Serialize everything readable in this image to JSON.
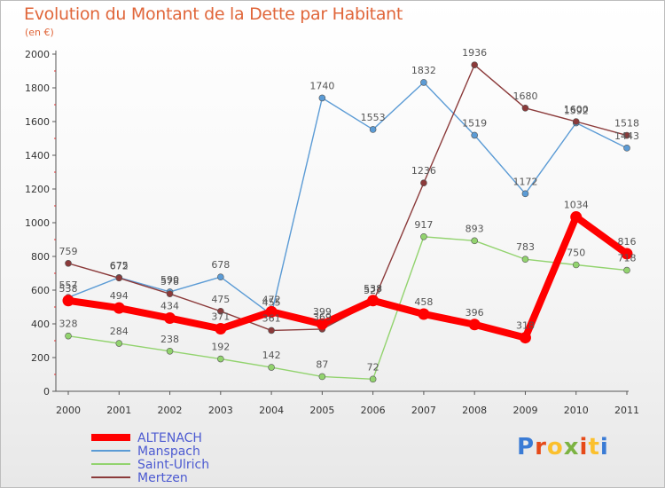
{
  "title": "Evolution du Montant de la Dette par Habitant",
  "subtitle": "(en €)",
  "logo": {
    "text": "Proxiti",
    "colors": [
      "#3a7bd5",
      "#e64a19",
      "#fbc02d",
      "#7cb342",
      "#e64a19",
      "#fbc02d",
      "#3a7bd5"
    ]
  },
  "chart_data": {
    "type": "line",
    "title": "Evolution du Montant de la Dette par Habitant",
    "subtitle": "(en €)",
    "xlabel": "",
    "ylabel": "",
    "x": [
      "2000",
      "2001",
      "2002",
      "2003",
      "2004",
      "2005",
      "2006",
      "2007",
      "2008",
      "2009",
      "2010",
      "2011"
    ],
    "ylim": [
      0,
      2000
    ],
    "yticks": [
      "0",
      "200",
      "400",
      "600",
      "800",
      "1000",
      "1200",
      "1400",
      "1600",
      "1800",
      "2000"
    ],
    "grid": false,
    "legend_position": "bottom-left",
    "series": [
      {
        "name": "ALTENACH",
        "color": "#ff0000",
        "emphasis": true,
        "values": [
          538,
          494,
          434,
          371,
          472,
          399,
          538,
          458,
          396,
          318,
          1034,
          816
        ],
        "labels": [
          "538",
          "494",
          "434",
          "371",
          "472",
          "399",
          "538",
          "458",
          "396",
          "318",
          "1034",
          "816"
        ]
      },
      {
        "name": "Manspach",
        "color": "#5b9bd5",
        "values": [
          557,
          675,
          590,
          678,
          455,
          1740,
          1553,
          1832,
          1519,
          1172,
          1592,
          1443
        ],
        "labels": [
          "557",
          "675",
          "590",
          "678",
          "455",
          "1740",
          "1553",
          "1832",
          "1519",
          "1172",
          "1592",
          "1443"
        ]
      },
      {
        "name": "Saint-Ulrich",
        "color": "#92d36e",
        "values": [
          328,
          284,
          238,
          192,
          142,
          87,
          72,
          917,
          893,
          783,
          750,
          718
        ],
        "labels": [
          "328",
          "284",
          "238",
          "192",
          "142",
          "87",
          "72",
          "917",
          "893",
          "783",
          "750",
          "718"
        ]
      },
      {
        "name": "Mertzen",
        "color": "#8b3a3a",
        "values": [
          759,
          672,
          578,
          475,
          361,
          369,
          527,
          1236,
          1936,
          1680,
          1600,
          1518
        ],
        "labels": [
          "759",
          "672",
          "578",
          "475",
          "361",
          "369",
          "527",
          "1236",
          "1936",
          "1680",
          "1600",
          "1518"
        ]
      }
    ]
  }
}
